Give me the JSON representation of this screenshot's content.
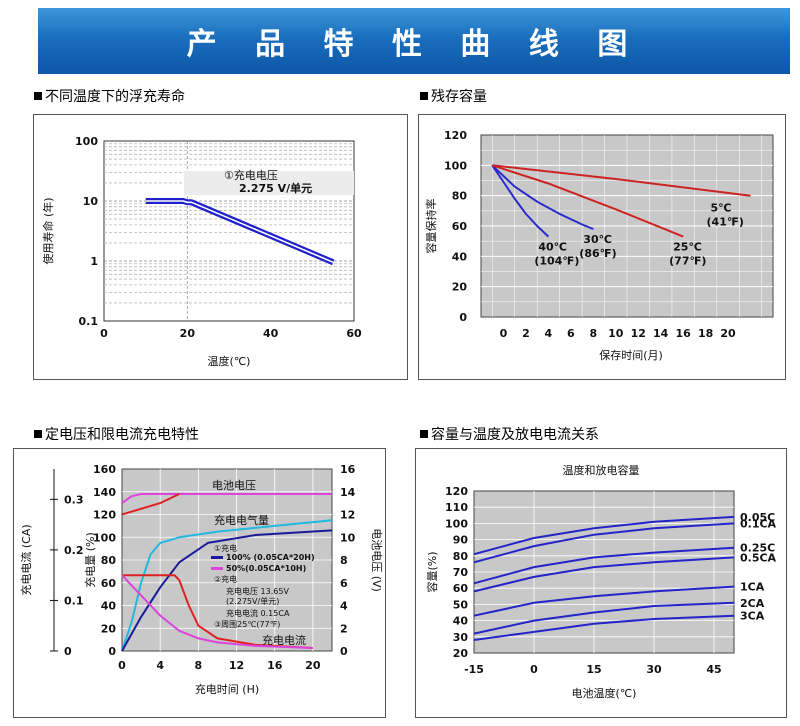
{
  "banner": {
    "title": "产 品 特 性 曲 线 图"
  },
  "sections": {
    "s1": "不同温度下的浮充寿命",
    "s2": "残存容量",
    "s3": "定电压和限电流充电特性",
    "s4": "容量与温度及放电电流关系"
  },
  "chart_data": [
    {
      "id": "float-life",
      "type": "line",
      "xlabel": "温度(℃)",
      "ylabel": "使用寿命 (年)",
      "xlim": [
        0,
        60
      ],
      "ylim": [
        0.1,
        100
      ],
      "y_scale": "log",
      "x_ticks": [
        "0",
        "20",
        "40",
        "60"
      ],
      "y_ticks": [
        "0.1",
        "1",
        "10",
        "100"
      ],
      "grid": true,
      "annotation": [
        "①充电电压",
        "2.275 V/单元"
      ],
      "series": [
        {
          "x": [
            10,
            19,
            20,
            21,
            55
          ],
          "y": [
            10,
            10,
            9.5,
            9.5,
            0.95
          ]
        }
      ]
    },
    {
      "id": "residual-capacity",
      "type": "line",
      "xlabel": "保存时间(月)",
      "ylabel": "容量保持率",
      "xlim": [
        -2,
        24
      ],
      "ylim": [
        0,
        120
      ],
      "x_ticks": [
        "0",
        "2",
        "4",
        "6",
        "8",
        "10",
        "12",
        "14",
        "16",
        "18",
        "20"
      ],
      "y_ticks": [
        "0",
        "20",
        "40",
        "60",
        "80",
        "100",
        "120"
      ],
      "grid": true,
      "series": [
        {
          "label": [
            "40℃",
            "(104℉)"
          ],
          "color": "#2a2acc",
          "x": [
            -1,
            0,
            1,
            2,
            3,
            4
          ],
          "y": [
            100,
            89,
            78,
            68,
            60,
            53
          ]
        },
        {
          "label": [
            "30℃",
            "(86℉)"
          ],
          "color": "#2a2acc",
          "x": [
            -1,
            1,
            3,
            5,
            7,
            8
          ],
          "y": [
            100,
            86,
            76,
            68,
            61,
            58
          ]
        },
        {
          "label": [
            "25℃",
            "(77℉)"
          ],
          "color": "#cc2222",
          "x": [
            -1,
            4,
            10,
            16
          ],
          "y": [
            100,
            88,
            71,
            53
          ]
        },
        {
          "label": [
            "5℃",
            "(41℉)"
          ],
          "color": "#cc2222",
          "x": [
            -1,
            10,
            22
          ],
          "y": [
            100,
            91,
            80
          ]
        }
      ]
    },
    {
      "id": "charge-characteristics",
      "type": "line",
      "xlabel": "充电时间 (H)",
      "ylabel_left_outer": "充电电流 (CA)",
      "ylabel_left_inner": "充电量 (%)",
      "ylabel_right": "电池电压 (V)",
      "xlim": [
        0,
        22
      ],
      "ylim": [
        0,
        160
      ],
      "x_ticks": [
        "0",
        "4",
        "8",
        "12",
        "16",
        "20"
      ],
      "y_ticks": [
        "0",
        "20",
        "40",
        "60",
        "80",
        "100",
        "120",
        "140",
        "160"
      ],
      "y_ticks_right": [
        "0",
        "2",
        "4",
        "6",
        "8",
        "10",
        "12",
        "14",
        "16"
      ],
      "y_ticks_current": [
        "0",
        "0.1",
        "0.2",
        "0.3"
      ],
      "grid": true,
      "annotations": {
        "voltage": "电池电压",
        "charge_amount": "充电电气量",
        "current": "充电电流",
        "legend_1_a": "①充电",
        "legend_1_b": "100% (0.05CA*20H)",
        "legend_1_c": "50%(0.05CA*10H)",
        "legend_2_a": "②充电",
        "legend_2_b": "充电电压 13.65V",
        "legend_2_c": "(2.275V/单元)",
        "legend_2_d": "充电电流 0.15CA",
        "legend_3": "③周围25℃(77℉)"
      },
      "series": [
        {
          "name": "voltage-magenta",
          "color": "#dd44dd",
          "x": [
            0,
            1,
            2,
            3,
            22
          ],
          "y": [
            13,
            13.6,
            13.8,
            13.8,
            13.8
          ],
          "axis": "right"
        },
        {
          "name": "voltage-red",
          "color": "#dd2222",
          "x": [
            0,
            2,
            4,
            6
          ],
          "y": [
            12,
            12.5,
            13,
            13.8
          ],
          "axis": "right"
        },
        {
          "name": "charge-cyan",
          "color": "#22b8e0",
          "x": [
            0,
            1,
            2,
            3,
            4,
            6,
            10,
            16,
            22
          ],
          "y": [
            0,
            25,
            60,
            85,
            95,
            100,
            105,
            110,
            115
          ]
        },
        {
          "name": "charge-navy",
          "color": "#1a1a99",
          "x": [
            0,
            2,
            4,
            6,
            9,
            14,
            22
          ],
          "y": [
            0,
            30,
            56,
            78,
            95,
            102,
            106
          ]
        },
        {
          "name": "current-red",
          "color": "#dd2222",
          "x": [
            0,
            5.5,
            6,
            7,
            8,
            10,
            14,
            20
          ],
          "y": [
            0.15,
            0.15,
            0.14,
            0.09,
            0.05,
            0.025,
            0.012,
            0.006
          ]
        },
        {
          "name": "current-magenta",
          "color": "#dd44dd",
          "x": [
            0,
            2,
            4,
            6,
            8,
            10,
            14,
            20
          ],
          "y": [
            0.15,
            0.11,
            0.07,
            0.04,
            0.025,
            0.017,
            0.01,
            0.006
          ]
        }
      ]
    },
    {
      "id": "capacity-temperature",
      "type": "line",
      "title": "温度和放电容量",
      "xlabel": "电池温度(℃)",
      "ylabel": "容量(%)",
      "xlim": [
        -15,
        50
      ],
      "ylim": [
        20,
        120
      ],
      "x_ticks": [
        "-15",
        "0",
        "15",
        "30",
        "45"
      ],
      "y_ticks": [
        "20",
        "30",
        "40",
        "50",
        "60",
        "70",
        "80",
        "90",
        "100",
        "110",
        "120"
      ],
      "grid": true,
      "series": [
        {
          "name": "0.05C",
          "x": [
            -15,
            0,
            15,
            30,
            50
          ],
          "y": [
            81,
            91,
            97,
            101,
            104
          ]
        },
        {
          "name": "0.1CA",
          "x": [
            -15,
            0,
            15,
            30,
            50
          ],
          "y": [
            76,
            86,
            93,
            97,
            100
          ]
        },
        {
          "name": "0.25C",
          "x": [
            -15,
            0,
            15,
            30,
            50
          ],
          "y": [
            63,
            73,
            79,
            82,
            85
          ]
        },
        {
          "name": "0.5CA",
          "x": [
            -15,
            0,
            15,
            30,
            50
          ],
          "y": [
            58,
            67,
            73,
            76,
            79
          ]
        },
        {
          "name": "1CA",
          "x": [
            -15,
            0,
            15,
            30,
            50
          ],
          "y": [
            43,
            51,
            55,
            58,
            61
          ]
        },
        {
          "name": "2CA",
          "x": [
            -15,
            0,
            15,
            30,
            50
          ],
          "y": [
            32,
            40,
            45,
            49,
            51
          ]
        },
        {
          "name": "3CA",
          "x": [
            -15,
            0,
            15,
            30,
            50
          ],
          "y": [
            28,
            33,
            38,
            41,
            43
          ]
        }
      ]
    }
  ]
}
